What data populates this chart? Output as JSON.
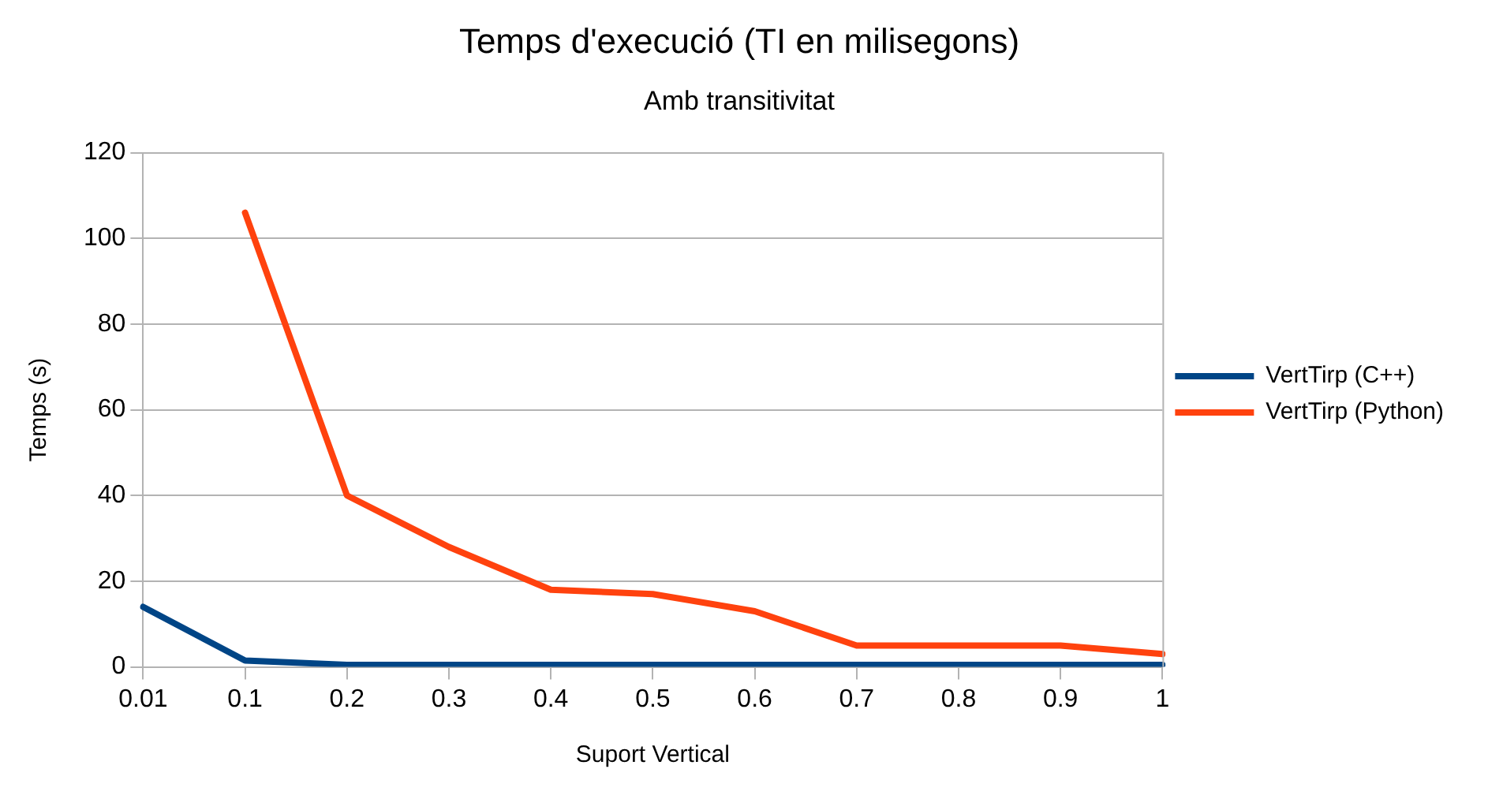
{
  "chart_data": {
    "type": "line",
    "title": "Temps d'execució (TI en milisegons)",
    "subtitle": "Amb transitivitat",
    "xlabel": "Suport Vertical",
    "ylabel": "Temps (s)",
    "categories": [
      "0.01",
      "0.1",
      "0.2",
      "0.3",
      "0.4",
      "0.5",
      "0.6",
      "0.7",
      "0.8",
      "0.9",
      "1"
    ],
    "series": [
      {
        "name": "VertTirp (C++)",
        "color": "#004586",
        "values": [
          14,
          1.5,
          0.5,
          0.5,
          0.5,
          0.5,
          0.5,
          0.5,
          0.5,
          0.5,
          0.5
        ]
      },
      {
        "name": "VertTirp (Python)",
        "color": "#ff420e",
        "values": [
          null,
          106,
          40,
          28,
          18,
          17,
          13,
          5,
          5,
          5,
          3
        ]
      }
    ],
    "ylim": [
      0,
      120
    ],
    "yticks": [
      0,
      20,
      40,
      60,
      80,
      100,
      120
    ],
    "grid": "y",
    "legend": "right",
    "marker": "none",
    "line_style": "solid"
  }
}
